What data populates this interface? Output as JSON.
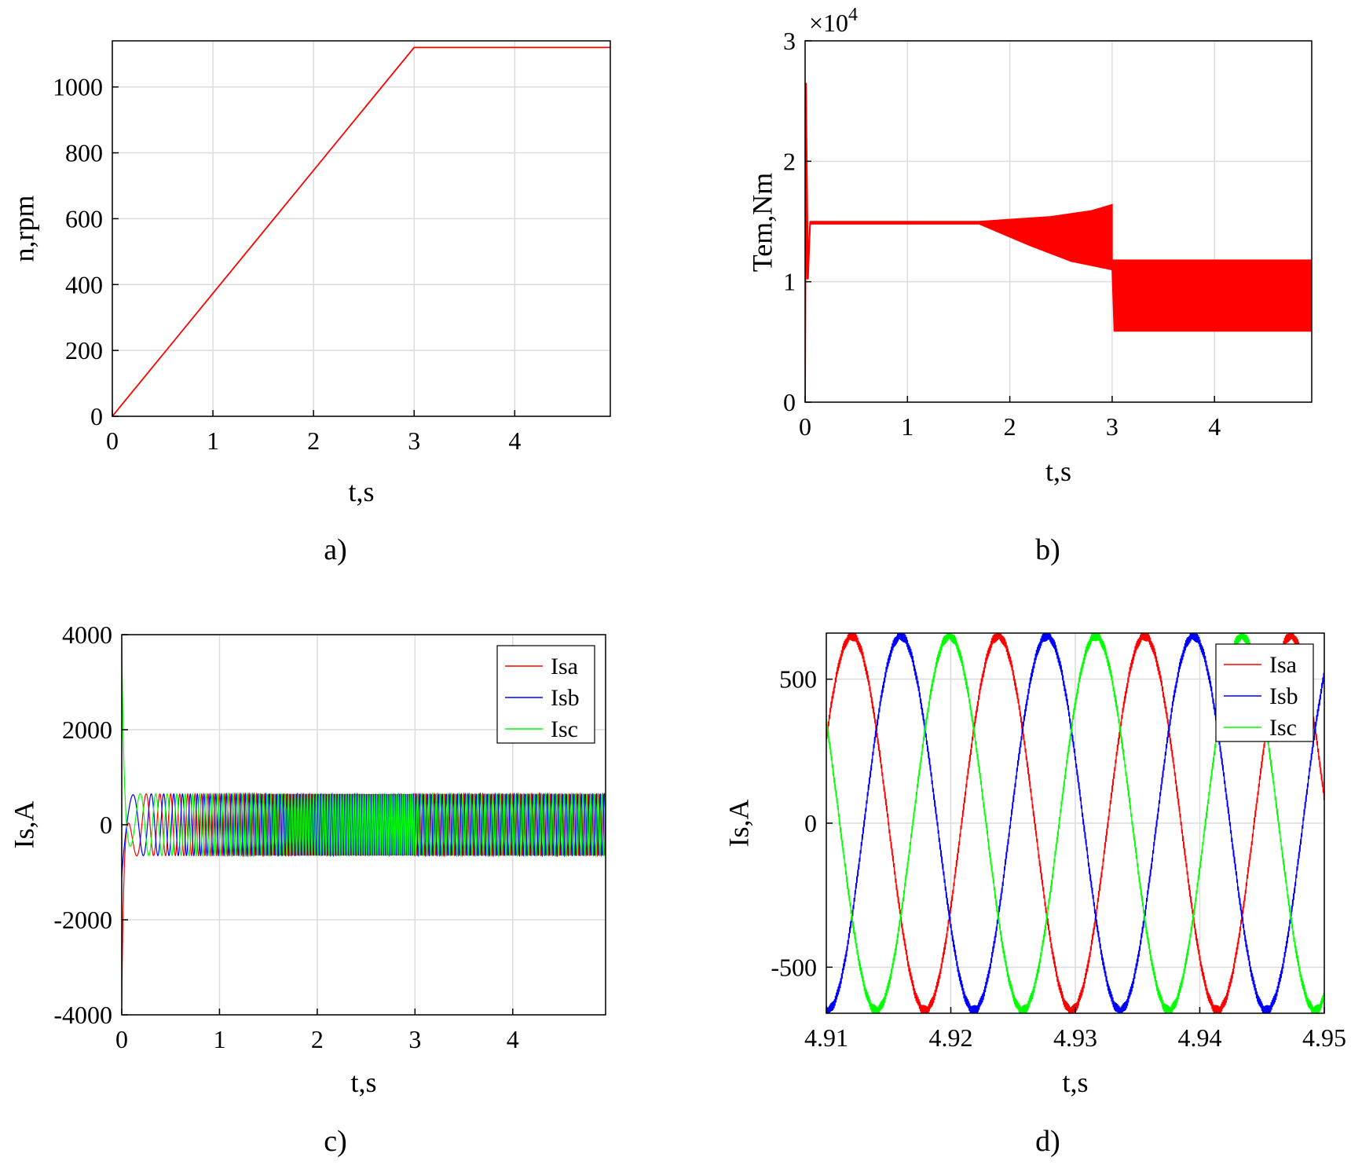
{
  "colors": {
    "Isa": "#ff0000",
    "Isb": "#0000ff",
    "Isc": "#00ff00",
    "grid": "#dcdcdc",
    "axis": "#000000"
  },
  "chart_data": [
    {
      "id": "a",
      "type": "line",
      "caption": "a)",
      "xlabel": "t,s",
      "ylabel": "n,rpm",
      "xlim": [
        0,
        4.95
      ],
      "ylim": [
        0,
        1140
      ],
      "xticks": [
        0,
        1,
        2,
        3,
        4
      ],
      "yticks": [
        0,
        200,
        400,
        600,
        800,
        1000
      ],
      "grid": true,
      "series": [
        {
          "color": "#ff0000",
          "x": [
            0,
            3,
            4.95
          ],
          "y": [
            0,
            1120,
            1120
          ]
        }
      ]
    },
    {
      "id": "b",
      "type": "line",
      "caption": "b)",
      "xlabel": "t,s",
      "ylabel": "Tem,Nm",
      "exponent_base": "×10",
      "exponent_power": "4",
      "xlim": [
        0,
        4.95
      ],
      "ylim": [
        0,
        3
      ],
      "xticks": [
        0,
        1,
        2,
        3,
        4
      ],
      "yticks": [
        0,
        1,
        2,
        3
      ],
      "grid": true,
      "series": [
        {
          "color": "#ff0000",
          "envelope_upper": [
            [
              0,
              0
            ],
            [
              0.01,
              2.65
            ],
            [
              0.03,
              1.02
            ],
            [
              0.05,
              1.5
            ],
            [
              1.7,
              1.5
            ],
            [
              2.4,
              1.54
            ],
            [
              2.8,
              1.59
            ],
            [
              3.0,
              1.64
            ],
            [
              3.0,
              1.18
            ],
            [
              4.95,
              1.18
            ]
          ],
          "envelope_lower": [
            [
              0,
              0
            ],
            [
              0.01,
              2.6
            ],
            [
              0.03,
              1.02
            ],
            [
              0.05,
              1.48
            ],
            [
              1.7,
              1.48
            ],
            [
              2.2,
              1.3
            ],
            [
              2.6,
              1.17
            ],
            [
              3.0,
              1.1
            ],
            [
              3.02,
              0.59
            ],
            [
              4.95,
              0.59
            ]
          ]
        }
      ]
    },
    {
      "id": "c",
      "type": "line",
      "caption": "c)",
      "xlabel": "t,s",
      "ylabel": "Is,A",
      "xlim": [
        0,
        4.95
      ],
      "ylim": [
        -4000,
        4000
      ],
      "xticks": [
        0,
        1,
        2,
        3,
        4
      ],
      "yticks": [
        -4000,
        -2000,
        0,
        2000,
        4000
      ],
      "grid": true,
      "legend": {
        "position": "top-right",
        "entries": [
          "Isa",
          "Isb",
          "Isc"
        ]
      },
      "steady_amplitude": 650,
      "startup_peaks": {
        "Isa": -3750,
        "Isb": -1100,
        "Isc": 3900
      },
      "series": [
        {
          "name": "Isa",
          "color": "#ff0000"
        },
        {
          "name": "Isb",
          "color": "#0000ff"
        },
        {
          "name": "Isc",
          "color": "#00ff00"
        }
      ]
    },
    {
      "id": "d",
      "type": "line",
      "caption": "d)",
      "xlabel": "t,s",
      "ylabel": "Is,A",
      "xlim": [
        4.91,
        4.95
      ],
      "ylim": [
        -660,
        660
      ],
      "xticks": [
        4.91,
        4.92,
        4.93,
        4.94,
        4.95
      ],
      "xticklabels": [
        "4.91",
        "4.92",
        "4.93",
        "4.94",
        "4.95"
      ],
      "yticks": [
        -500,
        0,
        500
      ],
      "grid": true,
      "legend": {
        "position": "top-right",
        "entries": [
          "Isa",
          "Isb",
          "Isc"
        ]
      },
      "amplitude": 650,
      "period_s": 0.01175,
      "series": [
        {
          "name": "Isa",
          "color": "#ff0000",
          "phase_deg": 0
        },
        {
          "name": "Isb",
          "color": "#0000ff",
          "phase_deg": -120
        },
        {
          "name": "Isc",
          "color": "#00ff00",
          "phase_deg": 120
        }
      ]
    }
  ]
}
